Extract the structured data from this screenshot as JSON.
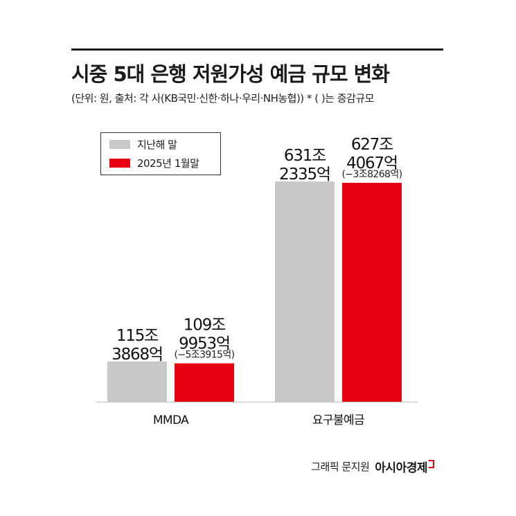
{
  "header": {
    "title": "시중 5대 은행 저원가성 예금 규모 변화",
    "subtitle": "(단위: 원, 출처: 각 사(KB국민·신한·하나·우리·NH농협))  * ( )는 증감규모"
  },
  "legend": [
    {
      "label": "지난해 말",
      "color": "#c8c8c8"
    },
    {
      "label": "2025년 1월말",
      "color": "#e60012"
    }
  ],
  "chart_data": {
    "type": "bar",
    "categories": [
      "MMDA",
      "요구불예금"
    ],
    "unit": "원",
    "series": [
      {
        "name": "지난해 말",
        "color": "#c8c8c8",
        "values": [
          115.3868,
          631.2335
        ],
        "labels": [
          [
            "115조",
            "3868억"
          ],
          [
            "631조",
            "2335억"
          ]
        ]
      },
      {
        "name": "2025년 1월말",
        "color": "#e60012",
        "values": [
          109.9953,
          627.4067
        ],
        "labels": [
          [
            "109조",
            "9953억"
          ],
          [
            "627조",
            "4067억"
          ]
        ]
      }
    ],
    "changes": [
      "(−5조3915억)",
      "(−3조8268억)"
    ],
    "grid": false,
    "legend_position": "top-left"
  },
  "footer": {
    "credit": "그래픽 문지원",
    "brand": "아시아경제"
  }
}
